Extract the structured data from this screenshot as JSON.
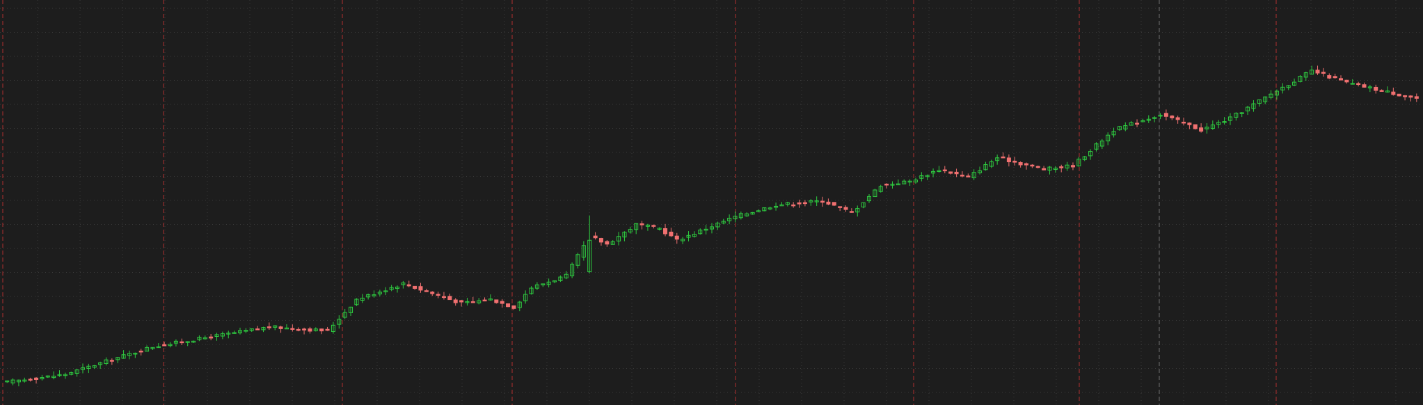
{
  "colors": {
    "background": "#1d1d1d",
    "grid": "#3b3b3b",
    "up": "#2ecc40",
    "down": "#f07070",
    "period_line": "#b03030",
    "marker_line": "#6e6e6e"
  },
  "chart_data": {
    "type": "candlestick",
    "title": "",
    "xlabel": "",
    "ylabel": "",
    "ylim": [
      0,
      100
    ],
    "grid": true,
    "grid_style": "dotted",
    "legend": "none",
    "period_separator_labels": [
      "",
      "",
      "",
      "",
      "",
      "",
      "",
      ""
    ],
    "marker_label": "",
    "price_path": [
      [
        0,
        3
      ],
      [
        10,
        5
      ],
      [
        25,
        12
      ],
      [
        45,
        17
      ],
      [
        55,
        16
      ],
      [
        60,
        24
      ],
      [
        68,
        28
      ],
      [
        72,
        26
      ],
      [
        78,
        23
      ],
      [
        83,
        24
      ],
      [
        87,
        22
      ],
      [
        90,
        27
      ],
      [
        96,
        30
      ],
      [
        100,
        40
      ],
      [
        103,
        38
      ],
      [
        108,
        43
      ],
      [
        112,
        42
      ],
      [
        115,
        39
      ],
      [
        120,
        42
      ],
      [
        125,
        45
      ],
      [
        132,
        48
      ],
      [
        140,
        49
      ],
      [
        145,
        46
      ],
      [
        150,
        53
      ],
      [
        155,
        54
      ],
      [
        160,
        57
      ],
      [
        165,
        55
      ],
      [
        170,
        60
      ],
      [
        178,
        57
      ],
      [
        183,
        58
      ],
      [
        190,
        67
      ],
      [
        198,
        71
      ],
      [
        205,
        67
      ],
      [
        210,
        70
      ],
      [
        218,
        77
      ],
      [
        224,
        82
      ],
      [
        230,
        79
      ],
      [
        236,
        77
      ],
      [
        242,
        75
      ]
    ]
  }
}
